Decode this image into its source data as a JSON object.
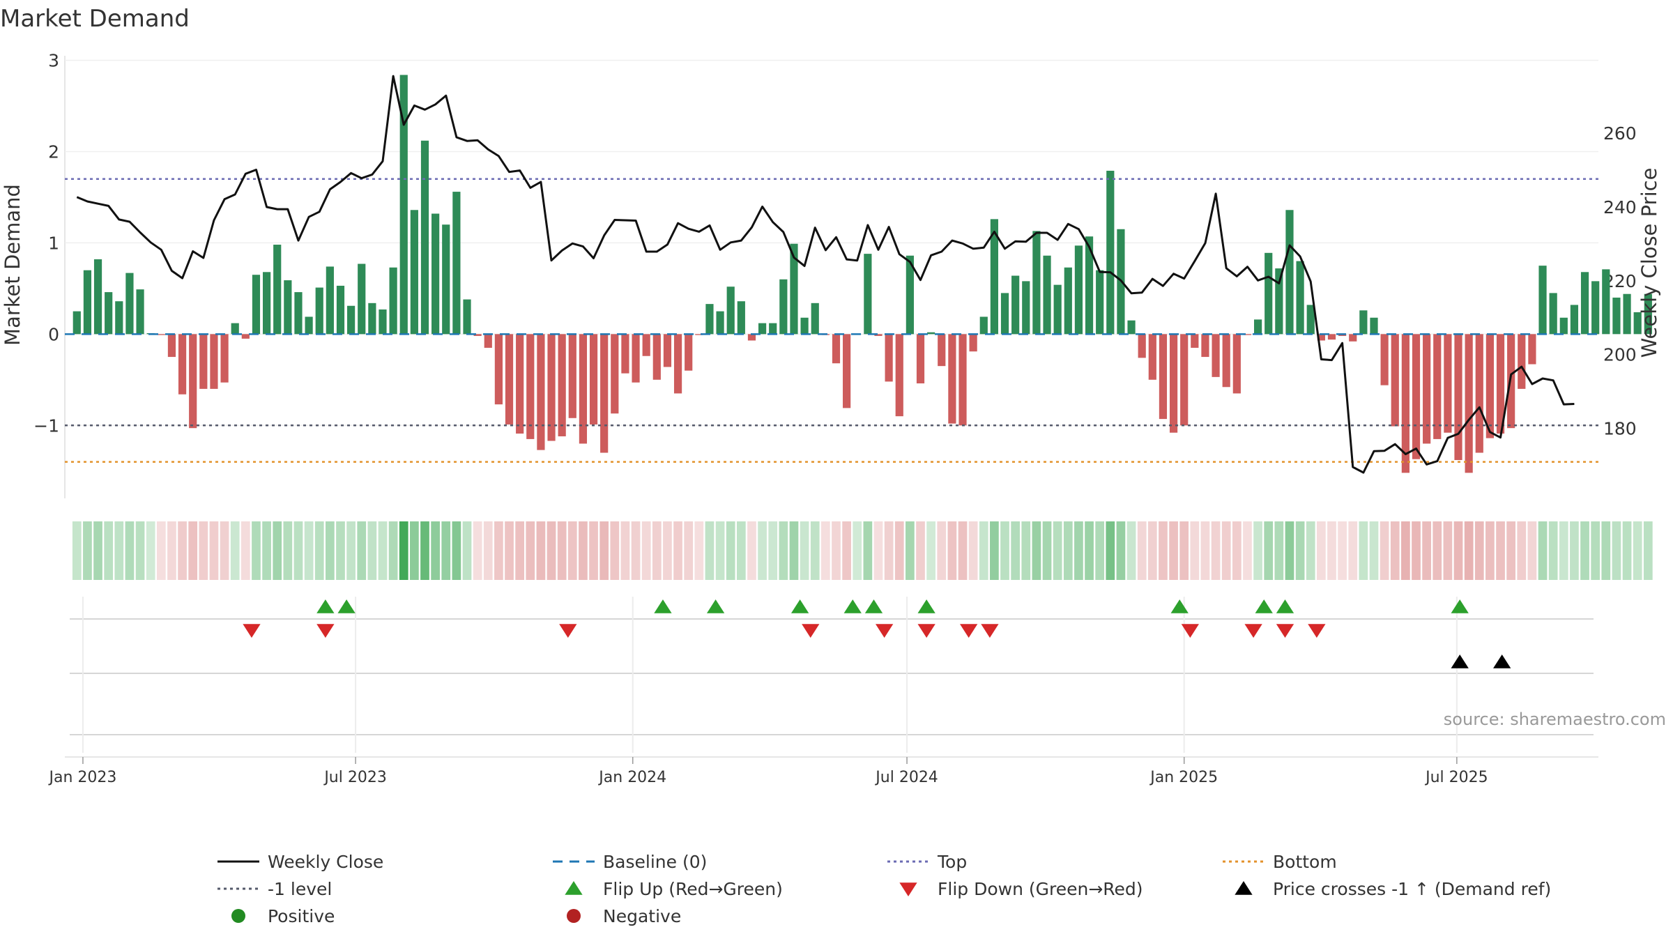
{
  "chart_data": {
    "type": "bar",
    "title": "Market Demand",
    "ylabel": "Market Demand",
    "y2label": "Weekly Close Price",
    "ylim": [
      -1.8,
      3.05
    ],
    "y2lim": [
      161,
      281
    ],
    "yticks": [
      {
        "v": -1,
        "label": "−1"
      },
      {
        "v": 0,
        "label": "0"
      },
      {
        "v": 1,
        "label": "1"
      },
      {
        "v": 2,
        "label": "2"
      },
      {
        "v": 3,
        "label": "3"
      }
    ],
    "y2ticks": [
      180,
      200,
      220,
      240,
      260
    ],
    "x_range_days": [
      -8,
      1010
    ],
    "xticks": [
      {
        "label": "Jan 2023",
        "day": 4
      },
      {
        "label": "Jul 2023",
        "day": 185
      },
      {
        "label": "Jan 2024",
        "day": 369
      },
      {
        "label": "Jul 2024",
        "day": 551
      },
      {
        "label": "Jan 2025",
        "day": 735
      },
      {
        "label": "Jul 2025",
        "day": 916
      }
    ],
    "week_interval_days": 7,
    "top_level": 1.7,
    "bottom_level": -1.4,
    "minus_one_level": -1,
    "demand": [
      0.25,
      0.7,
      0.82,
      0.46,
      0.36,
      0.67,
      0.49,
      0.01,
      -0.01,
      -0.25,
      -0.66,
      -1.03,
      -0.6,
      -0.6,
      -0.53,
      0.12,
      -0.05,
      0.65,
      0.68,
      0.98,
      0.59,
      0.46,
      0.19,
      0.51,
      0.74,
      0.53,
      0.31,
      0.77,
      0.34,
      0.27,
      0.73,
      2.84,
      1.36,
      2.12,
      1.32,
      1.2,
      1.56,
      0.38,
      -0.02,
      -0.15,
      -0.77,
      -0.99,
      -1.09,
      -1.15,
      -1.27,
      -1.17,
      -1.12,
      -0.92,
      -1.2,
      -0.99,
      -1.3,
      -0.87,
      -0.43,
      -0.53,
      -0.24,
      -0.5,
      -0.36,
      -0.65,
      -0.4,
      -0.01,
      0.33,
      0.25,
      0.52,
      0.36,
      -0.07,
      0.12,
      0.12,
      0.6,
      0.99,
      0.18,
      0.34,
      -0.01,
      -0.32,
      -0.81,
      0.0,
      0.88,
      -0.02,
      -0.52,
      -0.9,
      0.86,
      -0.54,
      0.02,
      -0.35,
      -0.98,
      -1.0,
      -0.19,
      0.19,
      1.26,
      0.45,
      0.64,
      0.58,
      1.13,
      0.86,
      0.54,
      0.73,
      0.97,
      1.07,
      0.7,
      1.79,
      1.15,
      0.15,
      -0.26,
      -0.5,
      -0.93,
      -1.08,
      -1.0,
      -0.15,
      -0.25,
      -0.47,
      -0.58,
      -0.65,
      -0.01,
      0.16,
      0.89,
      0.72,
      1.36,
      0.8,
      0.32,
      -0.07,
      -0.06,
      -0.02,
      -0.08,
      0.26,
      0.18,
      -0.56,
      -1.01,
      -1.52,
      -1.37,
      -1.2,
      -1.15,
      -1.08,
      -1.38,
      -1.52,
      -1.3,
      -1.14,
      -1.09,
      -1.03,
      -0.6,
      -0.33,
      0.75,
      0.45,
      0.18,
      0.32,
      0.68,
      0.58,
      0.71,
      0.4,
      0.44,
      0.24,
      0.44
    ],
    "price": [
      242.7,
      241.5,
      240.9,
      240.3,
      236.6,
      236.0,
      233.1,
      230.4,
      228.4,
      222.7,
      220.7,
      228.0,
      226.2,
      236.4,
      242.1,
      243.4,
      249.0,
      250.1,
      240.0,
      239.4,
      239.4,
      230.9,
      237.3,
      238.7,
      244.8,
      246.8,
      249.2,
      247.8,
      248.8,
      252.4,
      275.5,
      262.3,
      267.5,
      266.4,
      267.8,
      270.2,
      258.9,
      257.9,
      258.1,
      255.6,
      253.8,
      249.5,
      249.9,
      245.2,
      246.8,
      225.5,
      228.2,
      230.1,
      229.3,
      226.1,
      232.3,
      236.5,
      236.4,
      236.3,
      227.9,
      227.9,
      229.8,
      235.6,
      234.1,
      233.3,
      235.0,
      228.4,
      230.4,
      230.9,
      234.5,
      240.1,
      235.9,
      233.2,
      226.3,
      224.0,
      234.4,
      228.3,
      231.8,
      225.8,
      225.5,
      235.1,
      228.4,
      234.6,
      227.2,
      225.1,
      220.2,
      226.9,
      227.9,
      230.9,
      230.1,
      228.7,
      229.0,
      233.3,
      228.7,
      230.7,
      230.6,
      233.0,
      233.0,
      231.1,
      235.4,
      234.0,
      229.2,
      222.4,
      222.3,
      220.1,
      216.6,
      216.8,
      220.5,
      218.6,
      221.9,
      220.6,
      225.3,
      230.2,
      243.6,
      223.4,
      221.2,
      223.8,
      220.1,
      221.1,
      219.3,
      229.6,
      226.6,
      219.8,
      198.7,
      198.5,
      203.1,
      169.5,
      168.0,
      173.8,
      173.9,
      175.7,
      173.0,
      174.5,
      170.2,
      171.1,
      177.4,
      178.5,
      182.3,
      185.7,
      179.0,
      177.5,
      194.6,
      196.7,
      192.0,
      193.5,
      193.0,
      186.5,
      186.6
    ],
    "flip_up_days": [
      165,
      179,
      389,
      424,
      480,
      515,
      529,
      564,
      732,
      788,
      802,
      918
    ],
    "flip_down_days": [
      116,
      165,
      326,
      487,
      536,
      564,
      592,
      606,
      739,
      781,
      802,
      823
    ],
    "price_cross_days": [
      918,
      946
    ],
    "legend": [
      {
        "label": "Weekly Close",
        "marker": "line-solid",
        "color": "#111111"
      },
      {
        "label": "Baseline (0)",
        "marker": "line-dash",
        "color": "#1f77b4"
      },
      {
        "label": "Top",
        "marker": "line-dot",
        "color": "#6b6bb3"
      },
      {
        "label": "Bottom",
        "marker": "line-dot",
        "color": "#e3922b"
      },
      {
        "label": "-1 level",
        "marker": "line-dot",
        "color": "#555a6b"
      },
      {
        "label": "Flip Up (Red→Green)",
        "marker": "triangle-up",
        "color": "#2ca02c"
      },
      {
        "label": "Flip Down (Green→Red)",
        "marker": "triangle-down",
        "color": "#d62728"
      },
      {
        "label": "Price crosses -1 ↑ (Demand ref)",
        "marker": "triangle-up",
        "color": "#000000"
      },
      {
        "label": "Positive",
        "marker": "circle",
        "color": "#228b22"
      },
      {
        "label": "Negative",
        "marker": "circle",
        "color": "#b22222"
      }
    ],
    "source": "source: sharemaestro.com"
  },
  "colors": {
    "positive": "#2e8b57",
    "negative": "#cd5c5c",
    "price_line": "#111111",
    "baseline": "#1f77b4"
  }
}
